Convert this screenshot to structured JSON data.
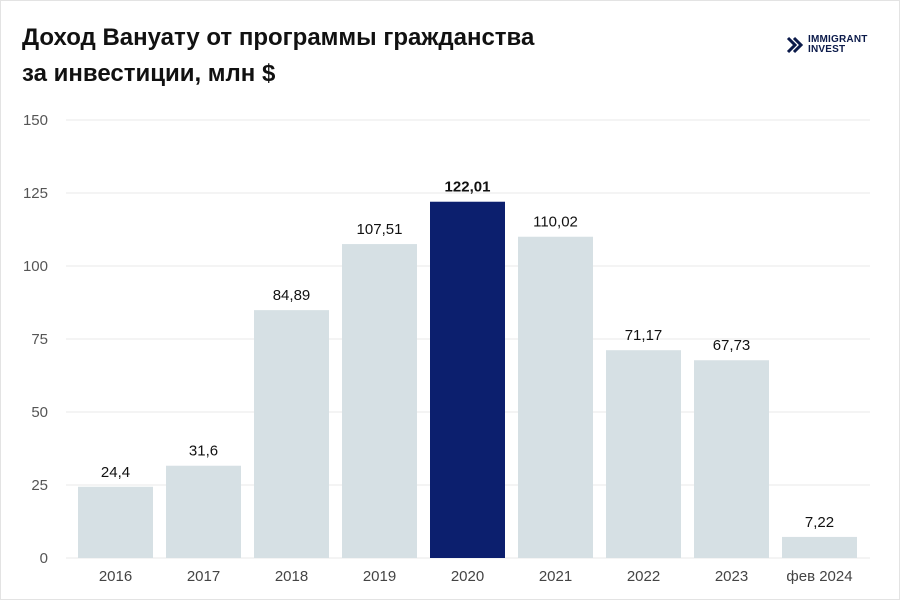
{
  "header": {
    "title_line1": "Доход Вануату от программы гражданства",
    "title_line2": "за инвестиции, млн $"
  },
  "logo": {
    "line1": "IMMIGRANT",
    "line2": "INVEST",
    "icon": "chevron-logo-icon"
  },
  "colors": {
    "bar": "#d6e0e4",
    "highlight": "#0c1f6e",
    "grid": "#e8e8e8"
  },
  "chart_data": {
    "type": "bar",
    "title": "Доход Вануату от программы гражданства за инвестиции, млн $",
    "categories": [
      "2016",
      "2017",
      "2018",
      "2019",
      "2020",
      "2021",
      "2022",
      "2023",
      "фев 2024"
    ],
    "values": [
      24.4,
      31.6,
      84.89,
      107.51,
      122.01,
      110.02,
      71.17,
      67.73,
      7.22
    ],
    "value_labels": [
      "24,4",
      "31,6",
      "84,89",
      "107,51",
      "122,01",
      "110,02",
      "71,17",
      "67,73",
      "7,22"
    ],
    "highlight_category": "2020",
    "ylim": [
      0,
      150
    ],
    "yticks": [
      0,
      25,
      50,
      75,
      100,
      125,
      150
    ],
    "xlabel": "",
    "ylabel": "",
    "grid": true,
    "legend": "none"
  }
}
